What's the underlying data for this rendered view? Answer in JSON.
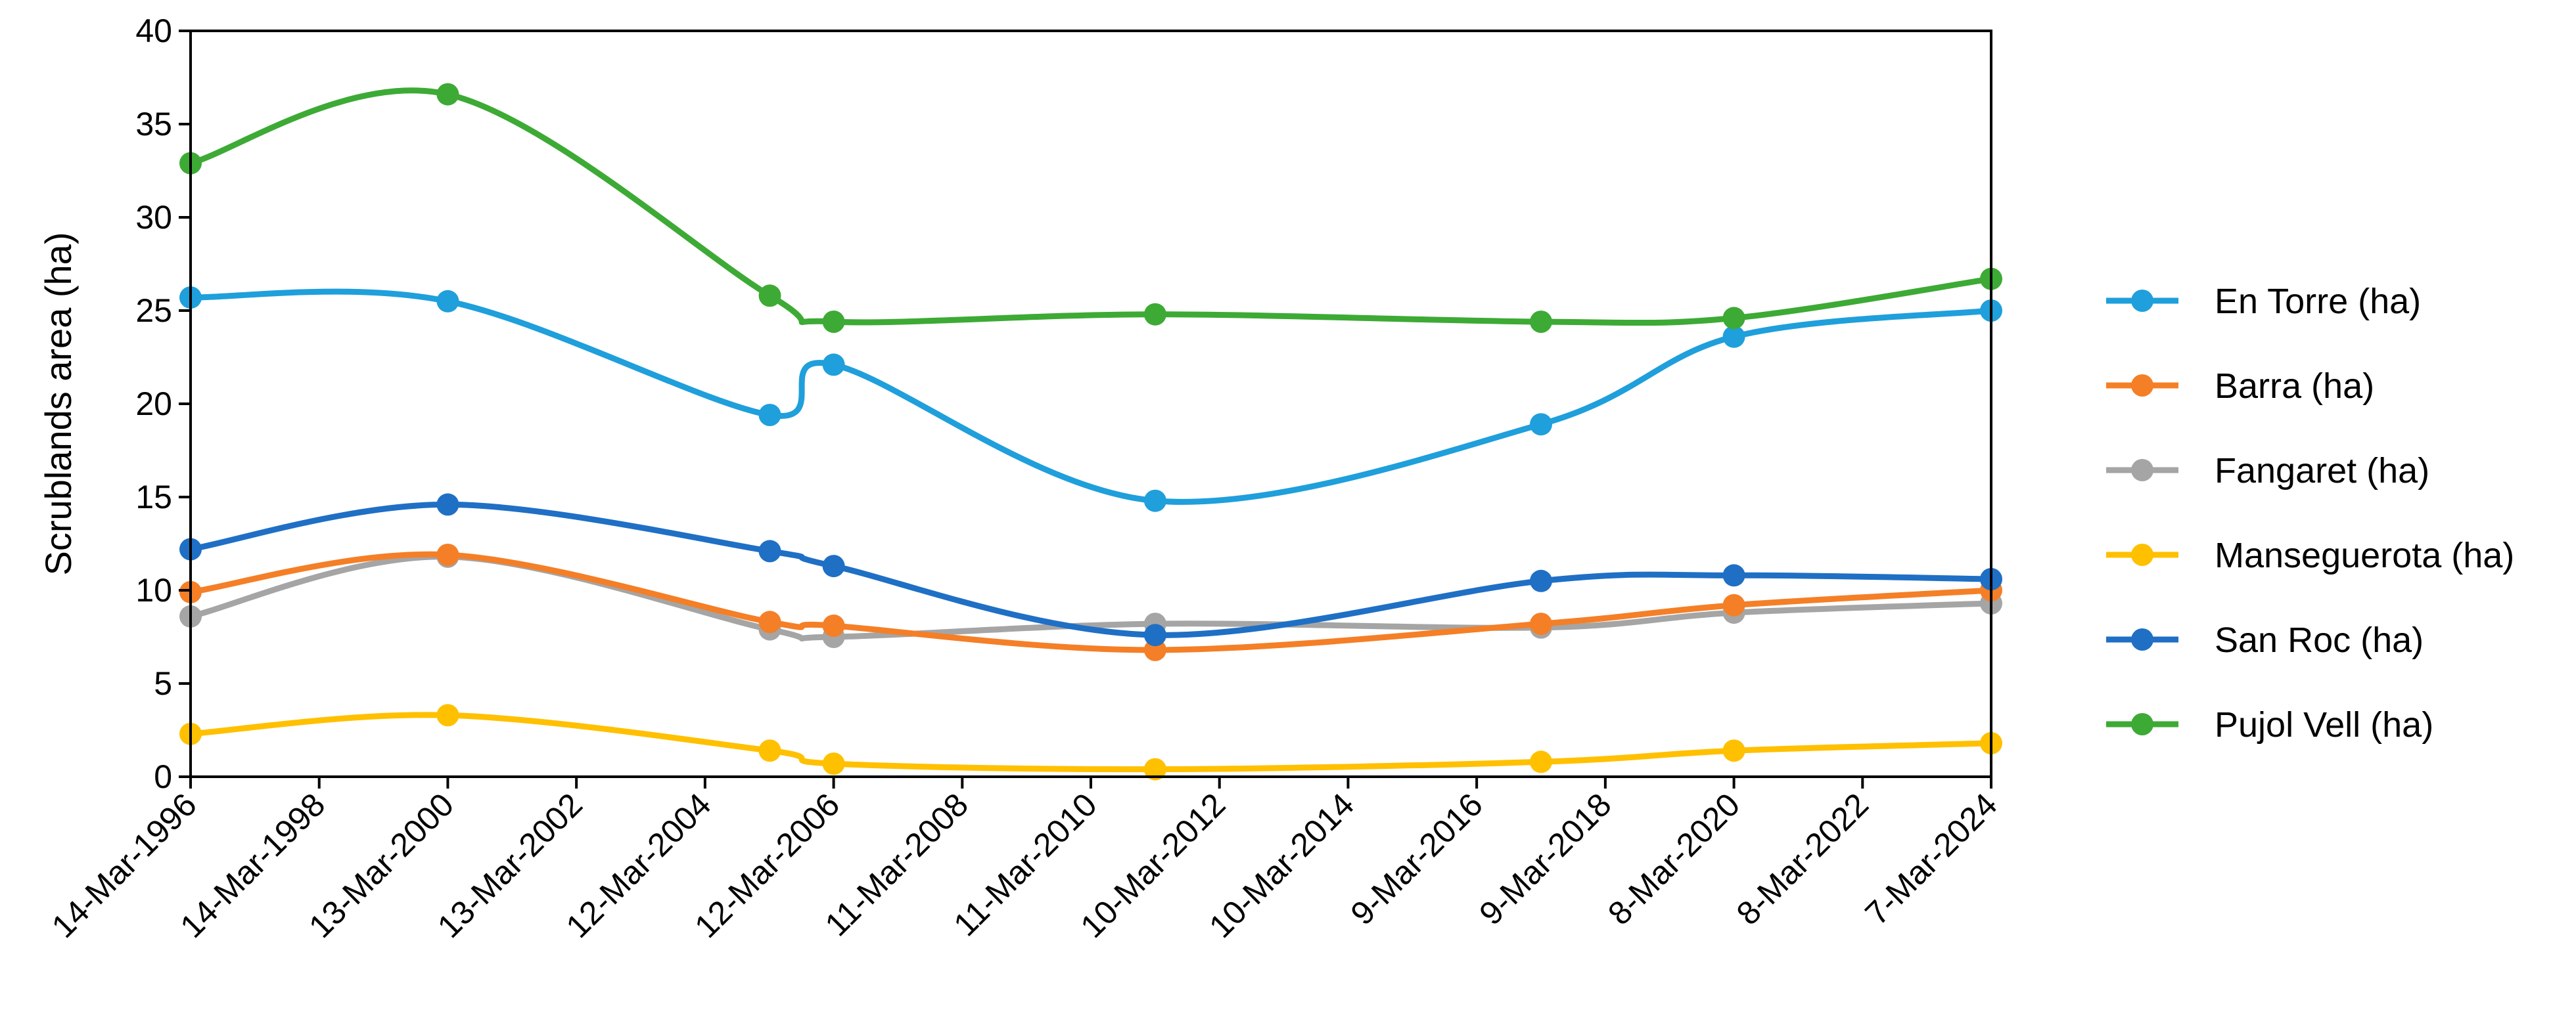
{
  "chart_data": {
    "type": "line",
    "xlabel": "",
    "ylabel": "Scrublands area (ha)",
    "ylim": [
      0,
      40
    ],
    "yticks": [
      "0",
      "5",
      "10",
      "15",
      "20",
      "25",
      "30",
      "35",
      "40"
    ],
    "xlim": [
      "1996-03-14",
      "2024-03-07"
    ],
    "xticks": [
      "14-Mar-1996",
      "14-Mar-1998",
      "13-Mar-2000",
      "13-Mar-2002",
      "12-Mar-2004",
      "12-Mar-2006",
      "11-Mar-2008",
      "11-Mar-2010",
      "10-Mar-2012",
      "10-Mar-2014",
      "9-Mar-2016",
      "9-Mar-2018",
      "8-Mar-2020",
      "8-Mar-2022",
      "7-Mar-2024"
    ],
    "x": [
      "1996-03-14",
      "2000-03-13",
      "2005-03-15",
      "2006-03-12",
      "2011-03-11",
      "2017-03-09",
      "2020-03-08",
      "2024-03-07"
    ],
    "smoothed": true,
    "grid": false,
    "legend_position": "right",
    "series": [
      {
        "name": "En Torre (ha)",
        "color": "#1f9fdb",
        "values": [
          25.7,
          25.5,
          19.4,
          22.1,
          14.8,
          18.9,
          23.6,
          25.0
        ]
      },
      {
        "name": "Barra (ha)",
        "color": "#f47f27",
        "values": [
          9.9,
          11.9,
          8.3,
          8.1,
          6.8,
          8.2,
          9.2,
          10.0
        ]
      },
      {
        "name": "Fangaret (ha)",
        "color": "#a5a5a5",
        "values": [
          8.6,
          11.8,
          7.9,
          7.5,
          8.2,
          8.0,
          8.8,
          9.3
        ]
      },
      {
        "name": "Manseguerota (ha)",
        "color": "#ffc000",
        "values": [
          2.3,
          3.3,
          1.4,
          0.7,
          0.4,
          0.8,
          1.4,
          1.8
        ]
      },
      {
        "name": "San Roc (ha)",
        "color": "#1f6fc5",
        "values": [
          12.2,
          14.6,
          12.1,
          11.3,
          7.6,
          10.5,
          10.8,
          10.6
        ]
      },
      {
        "name": "Pujol Vell (ha)",
        "color": "#3daa35",
        "values": [
          32.9,
          36.6,
          25.8,
          24.4,
          24.8,
          24.4,
          24.6,
          26.7
        ]
      }
    ]
  }
}
